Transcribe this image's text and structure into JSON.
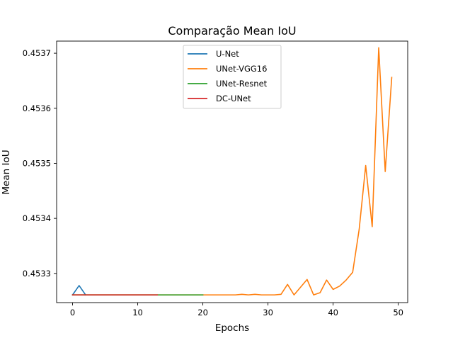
{
  "chart_data": {
    "type": "line",
    "title": "Comparação Mean IoU",
    "xlabel": "Epochs",
    "ylabel": "Mean IoU",
    "xlim": [
      -2.45,
      51.45
    ],
    "ylim": [
      0.453247,
      0.453722
    ],
    "xticks": [
      0,
      10,
      20,
      30,
      40,
      50
    ],
    "xtick_labels": [
      "0",
      "10",
      "20",
      "30",
      "40",
      "50"
    ],
    "yticks": [
      0.4533,
      0.4534,
      0.4535,
      0.4536,
      0.4537
    ],
    "ytick_labels": [
      "0.4533",
      "0.4534",
      "0.4535",
      "0.4536",
      "0.4537"
    ],
    "grid": false,
    "legend_position": "top-center",
    "series": [
      {
        "name": "U-Net",
        "color": "#1f77b4",
        "x": [
          0,
          1,
          2
        ],
        "values": [
          0.453261,
          0.453278,
          0.453261
        ]
      },
      {
        "name": "UNet-VGG16",
        "color": "#ff7f0e",
        "x": [
          0,
          1,
          2,
          3,
          4,
          5,
          6,
          7,
          8,
          9,
          10,
          11,
          12,
          13,
          14,
          15,
          16,
          17,
          18,
          19,
          20,
          21,
          22,
          23,
          24,
          25,
          26,
          27,
          28,
          29,
          30,
          31,
          32,
          33,
          34,
          35,
          36,
          37,
          38,
          39,
          40,
          41,
          42,
          43,
          44,
          45,
          46,
          47,
          48,
          49
        ],
        "values": [
          0.453261,
          0.453261,
          0.453261,
          0.453261,
          0.453261,
          0.453261,
          0.453261,
          0.453261,
          0.453261,
          0.453261,
          0.453261,
          0.453261,
          0.453261,
          0.453261,
          0.453261,
          0.453261,
          0.453261,
          0.453261,
          0.453261,
          0.453261,
          0.453261,
          0.453261,
          0.453261,
          0.453261,
          0.453261,
          0.453261,
          0.453262,
          0.453261,
          0.453262,
          0.453261,
          0.453261,
          0.453261,
          0.453262,
          0.45328,
          0.453261,
          0.453275,
          0.453289,
          0.453261,
          0.453265,
          0.453288,
          0.453271,
          0.453277,
          0.453288,
          0.453302,
          0.45338,
          0.453496,
          0.453385,
          0.45371,
          0.453485,
          0.453656
        ]
      },
      {
        "name": "UNet-Resnet",
        "color": "#2ca02c",
        "x": [
          0,
          1,
          2,
          3,
          4,
          5,
          6,
          7,
          8,
          9,
          10,
          11,
          12,
          13,
          14,
          15,
          16,
          17,
          18,
          19,
          20
        ],
        "values": [
          0.453261,
          0.453261,
          0.453261,
          0.453261,
          0.453261,
          0.453261,
          0.453261,
          0.453261,
          0.453261,
          0.453261,
          0.453261,
          0.453261,
          0.453261,
          0.453261,
          0.453261,
          0.453261,
          0.453261,
          0.453261,
          0.453261,
          0.453261,
          0.453261
        ]
      },
      {
        "name": "DC-UNet",
        "color": "#d62728",
        "x": [
          0,
          1,
          2,
          3,
          4,
          5,
          6,
          7,
          8,
          9,
          10,
          11,
          12,
          13
        ],
        "values": [
          0.453261,
          0.453261,
          0.453261,
          0.453261,
          0.453261,
          0.453261,
          0.453261,
          0.453261,
          0.453261,
          0.453261,
          0.453261,
          0.453261,
          0.453261,
          0.453261
        ]
      }
    ]
  }
}
